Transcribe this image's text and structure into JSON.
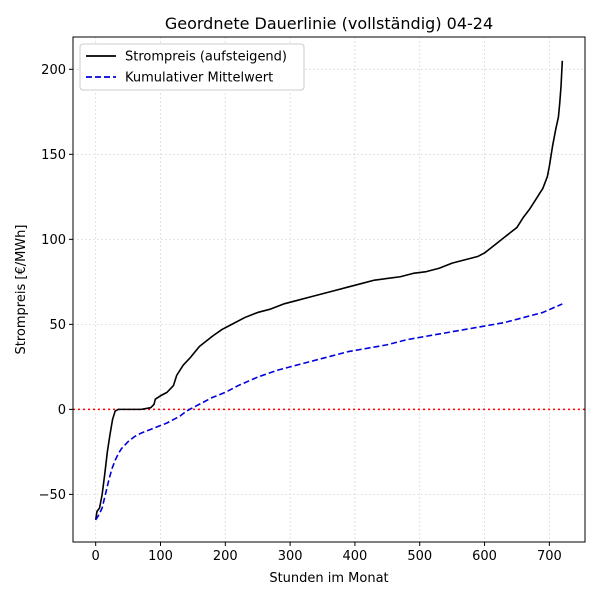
{
  "chart_data": {
    "type": "line",
    "title": "Geordnete Dauerlinie (vollständig) 04-24",
    "xlabel": "Stunden im Monat",
    "ylabel": "Strompreis [€/MWh]",
    "xlim": [
      -35,
      755
    ],
    "ylim": [
      -78,
      219
    ],
    "xticks": [
      0,
      100,
      200,
      300,
      400,
      500,
      600,
      700
    ],
    "xtick_labels": [
      "0",
      "100",
      "200",
      "300",
      "400",
      "500",
      "600",
      "700"
    ],
    "yticks": [
      -50,
      0,
      50,
      100,
      150,
      200
    ],
    "ytick_labels": [
      "−50",
      "0",
      "50",
      "100",
      "150",
      "200"
    ],
    "grid": true,
    "legend_position": "top-left",
    "reference_line": {
      "y": 0,
      "color": "#ff0000",
      "style": "dotted"
    },
    "series": [
      {
        "name": "Strompreis (aufsteigend)",
        "color": "#000000",
        "style": "solid",
        "points": [
          [
            0,
            -65
          ],
          [
            2,
            -60
          ],
          [
            6,
            -58
          ],
          [
            10,
            -50
          ],
          [
            14,
            -38
          ],
          [
            18,
            -25
          ],
          [
            22,
            -15
          ],
          [
            26,
            -6
          ],
          [
            30,
            -1
          ],
          [
            35,
            0
          ],
          [
            50,
            0
          ],
          [
            70,
            0
          ],
          [
            85,
            1
          ],
          [
            90,
            3
          ],
          [
            92,
            6
          ],
          [
            100,
            8
          ],
          [
            110,
            10
          ],
          [
            120,
            14
          ],
          [
            125,
            20
          ],
          [
            135,
            26
          ],
          [
            145,
            30
          ],
          [
            160,
            37
          ],
          [
            170,
            40
          ],
          [
            180,
            43
          ],
          [
            195,
            47
          ],
          [
            210,
            50
          ],
          [
            230,
            54
          ],
          [
            250,
            57
          ],
          [
            270,
            59
          ],
          [
            290,
            62
          ],
          [
            310,
            64
          ],
          [
            330,
            66
          ],
          [
            350,
            68
          ],
          [
            370,
            70
          ],
          [
            390,
            72
          ],
          [
            410,
            74
          ],
          [
            430,
            76
          ],
          [
            450,
            77
          ],
          [
            470,
            78
          ],
          [
            490,
            80
          ],
          [
            510,
            81
          ],
          [
            530,
            83
          ],
          [
            550,
            86
          ],
          [
            570,
            88
          ],
          [
            590,
            90
          ],
          [
            600,
            92
          ],
          [
            610,
            95
          ],
          [
            620,
            98
          ],
          [
            630,
            101
          ],
          [
            640,
            104
          ],
          [
            650,
            107
          ],
          [
            660,
            113
          ],
          [
            670,
            118
          ],
          [
            680,
            124
          ],
          [
            690,
            130
          ],
          [
            697,
            137
          ],
          [
            700,
            143
          ],
          [
            705,
            155
          ],
          [
            710,
            165
          ],
          [
            714,
            172
          ],
          [
            716,
            180
          ],
          [
            718,
            190
          ],
          [
            720,
            205
          ]
        ]
      },
      {
        "name": "Kumulativer Mittelwert",
        "color": "#0000dd",
        "style": "dashed",
        "points": [
          [
            0,
            -65
          ],
          [
            5,
            -62
          ],
          [
            10,
            -58
          ],
          [
            15,
            -50
          ],
          [
            20,
            -42
          ],
          [
            25,
            -35
          ],
          [
            30,
            -30
          ],
          [
            35,
            -26
          ],
          [
            40,
            -23
          ],
          [
            50,
            -19
          ],
          [
            60,
            -16
          ],
          [
            70,
            -14
          ],
          [
            80,
            -12.5
          ],
          [
            90,
            -11
          ],
          [
            100,
            -9.5
          ],
          [
            110,
            -8
          ],
          [
            120,
            -6
          ],
          [
            130,
            -4
          ],
          [
            140,
            -1
          ],
          [
            150,
            1
          ],
          [
            160,
            3
          ],
          [
            180,
            7
          ],
          [
            200,
            10
          ],
          [
            220,
            14
          ],
          [
            250,
            19
          ],
          [
            280,
            23
          ],
          [
            300,
            25
          ],
          [
            330,
            28
          ],
          [
            360,
            31
          ],
          [
            390,
            34
          ],
          [
            420,
            36
          ],
          [
            450,
            38
          ],
          [
            480,
            41
          ],
          [
            510,
            43
          ],
          [
            540,
            45
          ],
          [
            570,
            47
          ],
          [
            600,
            49
          ],
          [
            630,
            51
          ],
          [
            660,
            54
          ],
          [
            690,
            57
          ],
          [
            720,
            62
          ]
        ]
      }
    ]
  }
}
